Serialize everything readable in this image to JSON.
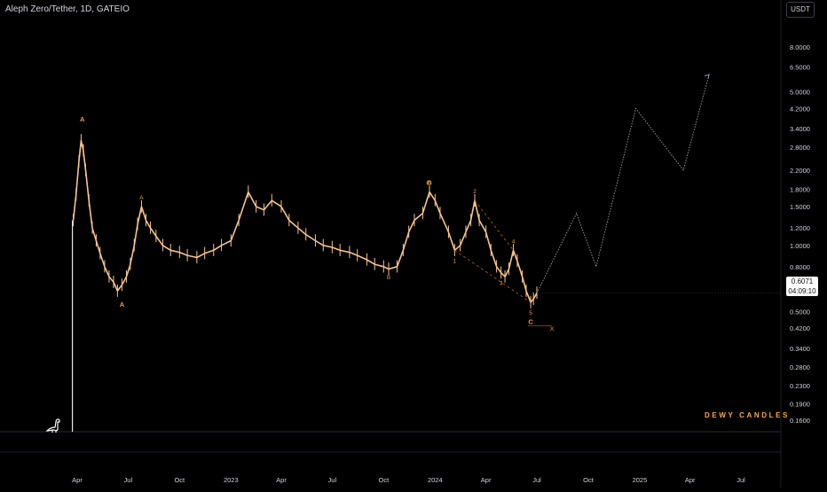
{
  "header": {
    "symbol_title": "Aleph Zero/Tether, 1D, GATEIO",
    "currency_button": "USDT"
  },
  "price_tag": {
    "price": "0.6071",
    "countdown": "04:09:10"
  },
  "watermark": "DEWY CANDLES",
  "colors": {
    "background": "#000000",
    "candles": "#f7c48a",
    "wave_labels": "#f0a040",
    "projection": "#9aa0a6",
    "grid": "#1c1f26",
    "text": "#d1d4dc"
  },
  "icons": {
    "logo": "dinosaur-icon"
  },
  "chart_data": {
    "type": "line",
    "scale": "log",
    "ylim": [
      0.15,
      8.4
    ],
    "y_ticks": [
      "8.0000",
      "6.5000",
      "5.0000",
      "4.2000",
      "3.4000",
      "2.8000",
      "2.2000",
      "1.8000",
      "1.5000",
      "1.2000",
      "1.0000",
      "0.8000",
      "0.6500",
      "0.5000",
      "0.4200",
      "0.3400",
      "0.2800",
      "0.2300",
      "0.1900",
      "0.1600"
    ],
    "y_tick_values": [
      8.0,
      6.5,
      5.0,
      4.2,
      3.4,
      2.8,
      2.2,
      1.8,
      1.5,
      1.2,
      1.0,
      0.8,
      0.65,
      0.5,
      0.42,
      0.34,
      0.28,
      0.23,
      0.19,
      0.16
    ],
    "x_ticks": [
      "Apr",
      "Jul",
      "Oct",
      "2023",
      "Apr",
      "Jul",
      "Oct",
      "2024",
      "Apr",
      "Jul",
      "Oct",
      "2025",
      "Apr",
      "Jul"
    ],
    "x_tick_dates": [
      "2022-04-01",
      "2022-07-01",
      "2022-10-01",
      "2023-01-01",
      "2023-04-01",
      "2023-07-01",
      "2023-10-01",
      "2024-01-01",
      "2024-04-01",
      "2024-07-01",
      "2024-10-01",
      "2025-01-01",
      "2025-04-01",
      "2025-07-01"
    ],
    "series": [
      {
        "values": [
          [
            "2022-03-25",
            1.3
          ],
          [
            "2022-03-30",
            1.7
          ],
          [
            "2022-04-04",
            2.4
          ],
          [
            "2022-04-08",
            3.0
          ],
          [
            "2022-04-12",
            2.7
          ],
          [
            "2022-04-16",
            2.2
          ],
          [
            "2022-04-22",
            1.6
          ],
          [
            "2022-04-28",
            1.2
          ],
          [
            "2022-05-05",
            1.05
          ],
          [
            "2022-05-12",
            0.92
          ],
          [
            "2022-05-20",
            0.8
          ],
          [
            "2022-05-28",
            0.72
          ],
          [
            "2022-06-05",
            0.68
          ],
          [
            "2022-06-12",
            0.62
          ],
          [
            "2022-06-20",
            0.66
          ],
          [
            "2022-06-28",
            0.72
          ],
          [
            "2022-07-05",
            0.82
          ],
          [
            "2022-07-12",
            1.0
          ],
          [
            "2022-07-18",
            1.25
          ],
          [
            "2022-07-25",
            1.5
          ],
          [
            "2022-08-02",
            1.3
          ],
          [
            "2022-08-10",
            1.2
          ],
          [
            "2022-08-20",
            1.1
          ],
          [
            "2022-09-01",
            1.0
          ],
          [
            "2022-09-15",
            0.95
          ],
          [
            "2022-10-01",
            0.93
          ],
          [
            "2022-10-15",
            0.9
          ],
          [
            "2022-11-01",
            0.88
          ],
          [
            "2022-11-15",
            0.92
          ],
          [
            "2022-12-01",
            0.95
          ],
          [
            "2022-12-15",
            1.0
          ],
          [
            "2023-01-01",
            1.05
          ],
          [
            "2023-01-15",
            1.3
          ],
          [
            "2023-02-01",
            1.75
          ],
          [
            "2023-02-15",
            1.5
          ],
          [
            "2023-03-01",
            1.45
          ],
          [
            "2023-03-15",
            1.6
          ],
          [
            "2023-04-01",
            1.5
          ],
          [
            "2023-04-15",
            1.3
          ],
          [
            "2023-05-01",
            1.2
          ],
          [
            "2023-05-15",
            1.12
          ],
          [
            "2023-06-01",
            1.05
          ],
          [
            "2023-06-15",
            1.0
          ],
          [
            "2023-07-01",
            0.98
          ],
          [
            "2023-07-15",
            0.95
          ],
          [
            "2023-08-01",
            0.93
          ],
          [
            "2023-08-15",
            0.9
          ],
          [
            "2023-09-01",
            0.86
          ],
          [
            "2023-09-15",
            0.82
          ],
          [
            "2023-10-01",
            0.8
          ],
          [
            "2023-10-10",
            0.78
          ],
          [
            "2023-10-25",
            0.8
          ],
          [
            "2023-11-05",
            0.95
          ],
          [
            "2023-11-15",
            1.15
          ],
          [
            "2023-11-25",
            1.3
          ],
          [
            "2023-12-10",
            1.4
          ],
          [
            "2023-12-22",
            1.75
          ],
          [
            "2024-01-01",
            1.6
          ],
          [
            "2024-01-10",
            1.4
          ],
          [
            "2024-01-25",
            1.15
          ],
          [
            "2024-02-05",
            0.95
          ],
          [
            "2024-02-15",
            1.0
          ],
          [
            "2024-02-25",
            1.15
          ],
          [
            "2024-03-05",
            1.3
          ],
          [
            "2024-03-12",
            1.6
          ],
          [
            "2024-03-20",
            1.3
          ],
          [
            "2024-04-01",
            1.15
          ],
          [
            "2024-04-10",
            0.95
          ],
          [
            "2024-04-20",
            0.8
          ],
          [
            "2024-04-28",
            0.75
          ],
          [
            "2024-05-05",
            0.72
          ],
          [
            "2024-05-12",
            0.78
          ],
          [
            "2024-05-20",
            0.95
          ],
          [
            "2024-05-27",
            0.85
          ],
          [
            "2024-06-05",
            0.72
          ],
          [
            "2024-06-12",
            0.62
          ],
          [
            "2024-06-20",
            0.55
          ],
          [
            "2024-06-25",
            0.57
          ],
          [
            "2024-07-01",
            0.6071
          ]
        ]
      }
    ],
    "projection": [
      [
        "2024-07-01",
        0.6071
      ],
      [
        "2024-09-10",
        1.4
      ],
      [
        "2024-10-15",
        0.8
      ],
      [
        "2024-12-25",
        4.2
      ],
      [
        "2025-03-20",
        2.2
      ],
      [
        "2025-05-05",
        6.0
      ]
    ],
    "wave_labels": [
      {
        "text": "A",
        "date": "2022-04-10",
        "price": 3.4,
        "pos": "above",
        "big": true
      },
      {
        "text": "A",
        "date": "2022-06-20",
        "price": 0.6,
        "pos": "below",
        "big": true
      },
      {
        "text": "A",
        "date": "2022-07-25",
        "price": 1.5,
        "pos": "above"
      },
      {
        "text": "B",
        "date": "2023-10-10",
        "price": 0.8,
        "pos": "below"
      },
      {
        "text": "B",
        "date": "2023-12-22",
        "price": 1.75,
        "pos": "above",
        "big": true
      },
      {
        "text": "C",
        "date": "2023-12-20",
        "price": 1.75,
        "pos": "above"
      },
      {
        "text": "2",
        "date": "2024-03-12",
        "price": 1.6,
        "pos": "above"
      },
      {
        "text": "4",
        "date": "2024-05-20",
        "price": 0.95,
        "pos": "above"
      },
      {
        "text": "1",
        "date": "2024-02-05",
        "price": 0.95,
        "pos": "below"
      },
      {
        "text": "3",
        "date": "2024-04-28",
        "price": 0.75,
        "pos": "below"
      },
      {
        "text": "5",
        "date": "2024-06-20",
        "price": 0.55,
        "pos": "below"
      },
      {
        "text": "C",
        "date": "2024-06-20",
        "price": 0.5,
        "pos": "below",
        "big": true
      },
      {
        "text": "X",
        "date": "2024-07-28",
        "price": 0.42,
        "pos": "at"
      }
    ],
    "channel_lines": [
      [
        [
          "2024-03-12",
          1.6
        ],
        [
          "2024-05-20",
          0.95
        ]
      ],
      [
        [
          "2024-02-05",
          0.95
        ],
        [
          "2024-06-20",
          0.55
        ]
      ]
    ],
    "invalidation_line": {
      "price": 0.43,
      "from": "2024-06-15",
      "to": "2024-07-28"
    }
  }
}
